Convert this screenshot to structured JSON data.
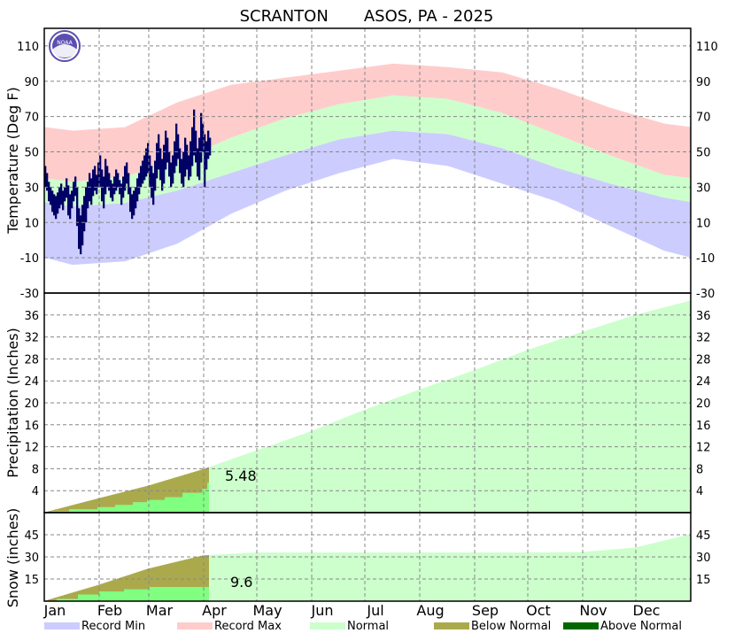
{
  "chart_data": [
    {
      "type": "bar",
      "title": "SCRANTON       ASOS, PA - 2025",
      "ylabel": "Temperature (Deg F)",
      "ylim": [
        -30,
        120
      ],
      "yticks": [
        -30,
        -10,
        10,
        30,
        50,
        70,
        90,
        110
      ],
      "grid": true,
      "months": [
        "Jan",
        "Feb",
        "Mar",
        "Apr",
        "May",
        "Jun",
        "Jul",
        "Aug",
        "Sep",
        "Oct",
        "Nov",
        "Dec"
      ],
      "normal_high_monthly": [
        33,
        36,
        45,
        58,
        69,
        77,
        82,
        80,
        72,
        60,
        48,
        37
      ],
      "normal_low_monthly": [
        19,
        21,
        28,
        38,
        48,
        57,
        62,
        60,
        52,
        41,
        32,
        24
      ],
      "record_high_monthly": [
        62,
        64,
        78,
        88,
        92,
        96,
        100,
        98,
        95,
        86,
        75,
        66
      ],
      "record_low_monthly": [
        -14,
        -12,
        -2,
        15,
        28,
        38,
        46,
        42,
        32,
        22,
        8,
        -6
      ],
      "observed_high_low": [
        [
          42,
          30
        ],
        [
          38,
          28
        ],
        [
          33,
          22
        ],
        [
          30,
          20
        ],
        [
          28,
          16
        ],
        [
          26,
          14
        ],
        [
          25,
          12
        ],
        [
          27,
          15
        ],
        [
          30,
          18
        ],
        [
          32,
          20
        ],
        [
          28,
          17
        ],
        [
          30,
          22
        ],
        [
          35,
          24
        ],
        [
          31,
          14
        ],
        [
          26,
          12
        ],
        [
          28,
          18
        ],
        [
          33,
          22
        ],
        [
          36,
          25
        ],
        [
          30,
          8
        ],
        [
          18,
          -5
        ],
        [
          14,
          -8
        ],
        [
          20,
          -3
        ],
        [
          25,
          5
        ],
        [
          30,
          10
        ],
        [
          33,
          18
        ],
        [
          38,
          22
        ],
        [
          35,
          20
        ],
        [
          40,
          25
        ],
        [
          42,
          28
        ],
        [
          37,
          26
        ],
        [
          44,
          30
        ],
        [
          48,
          30
        ],
        [
          40,
          22
        ],
        [
          36,
          18
        ],
        [
          46,
          26
        ],
        [
          42,
          30
        ],
        [
          38,
          28
        ],
        [
          34,
          24
        ],
        [
          32,
          22
        ],
        [
          36,
          26
        ],
        [
          40,
          28
        ],
        [
          38,
          30
        ],
        [
          34,
          26
        ],
        [
          32,
          20
        ],
        [
          36,
          24
        ],
        [
          42,
          28
        ],
        [
          44,
          32
        ],
        [
          38,
          26
        ],
        [
          30,
          16
        ],
        [
          26,
          12
        ],
        [
          28,
          14
        ],
        [
          30,
          18
        ],
        [
          35,
          22
        ],
        [
          38,
          26
        ],
        [
          42,
          30
        ],
        [
          45,
          32
        ],
        [
          48,
          34
        ],
        [
          52,
          36
        ],
        [
          55,
          38
        ],
        [
          48,
          30
        ],
        [
          42,
          24
        ],
        [
          38,
          20
        ],
        [
          45,
          28
        ],
        [
          55,
          35
        ],
        [
          60,
          40
        ],
        [
          52,
          34
        ],
        [
          46,
          28
        ],
        [
          54,
          32
        ],
        [
          62,
          40
        ],
        [
          58,
          44
        ],
        [
          50,
          36
        ],
        [
          44,
          30
        ],
        [
          48,
          32
        ],
        [
          56,
          38
        ],
        [
          66,
          42
        ],
        [
          60,
          46
        ],
        [
          52,
          38
        ],
        [
          46,
          32
        ],
        [
          50,
          30
        ],
        [
          58,
          36
        ],
        [
          54,
          40
        ],
        [
          48,
          34
        ],
        [
          56,
          36
        ],
        [
          64,
          42
        ],
        [
          74,
          48
        ],
        [
          62,
          44
        ],
        [
          52,
          36
        ],
        [
          58,
          34
        ],
        [
          72,
          44
        ],
        [
          66,
          50
        ],
        [
          60,
          30
        ],
        [
          56,
          40
        ],
        [
          62,
          46
        ],
        [
          58,
          48
        ]
      ]
    },
    {
      "type": "area",
      "ylabel": "Precipitation (Inches)",
      "ylim": [
        0,
        40
      ],
      "yticks": [
        4,
        8,
        12,
        16,
        20,
        24,
        28,
        32,
        36
      ],
      "normal_monthly_totals": [
        2.6,
        2.3,
        3.0,
        3.4,
        3.5,
        3.9,
        3.7,
        3.5,
        3.7,
        3.3,
        3.1,
        2.6
      ],
      "observed_cumulative": [
        [
          "Jan 1",
          0
        ],
        [
          "Jan 5",
          0.2
        ],
        [
          "Jan 15",
          0.6
        ],
        [
          "Jan 31",
          1.0
        ],
        [
          "Feb 10",
          1.4
        ],
        [
          "Feb 20",
          1.9
        ],
        [
          "Feb 28",
          2.3
        ],
        [
          "Mar 10",
          2.8
        ],
        [
          "Mar 20",
          3.6
        ],
        [
          "Mar 31",
          4.3
        ],
        [
          "Apr 3",
          5.48
        ]
      ],
      "observed_total_label": "5.48"
    },
    {
      "type": "area",
      "ylabel": "Snow (inches)",
      "ylim": [
        0,
        60
      ],
      "yticks": [
        15,
        30,
        45
      ],
      "normal_monthly_totals": [
        11,
        11,
        9,
        2,
        0,
        0,
        0,
        0,
        0,
        0.3,
        3,
        9
      ],
      "observed_cumulative": [
        [
          "Jan 1",
          0
        ],
        [
          "Jan 8",
          1.5
        ],
        [
          "Jan 20",
          4.5
        ],
        [
          "Feb 1",
          6.6
        ],
        [
          "Feb 15",
          8.0
        ],
        [
          "Mar 1",
          9.6
        ],
        [
          "Apr 3",
          9.6
        ]
      ],
      "observed_total_label": "9.6"
    }
  ],
  "legend": [
    {
      "label": "Record Min",
      "color": "#ccccff"
    },
    {
      "label": "Record Max",
      "color": "#ffcccc"
    },
    {
      "label": "Normal",
      "color": "#ccffcc"
    },
    {
      "label": "Below Normal",
      "color": "#aaaa4d"
    },
    {
      "label": "Above Normal",
      "color": "#006600"
    }
  ],
  "colors": {
    "observed_temp": "#000066",
    "observed_precip": "#80ff80",
    "logo": "#5a4fb0"
  },
  "logo_text": "NOAA"
}
